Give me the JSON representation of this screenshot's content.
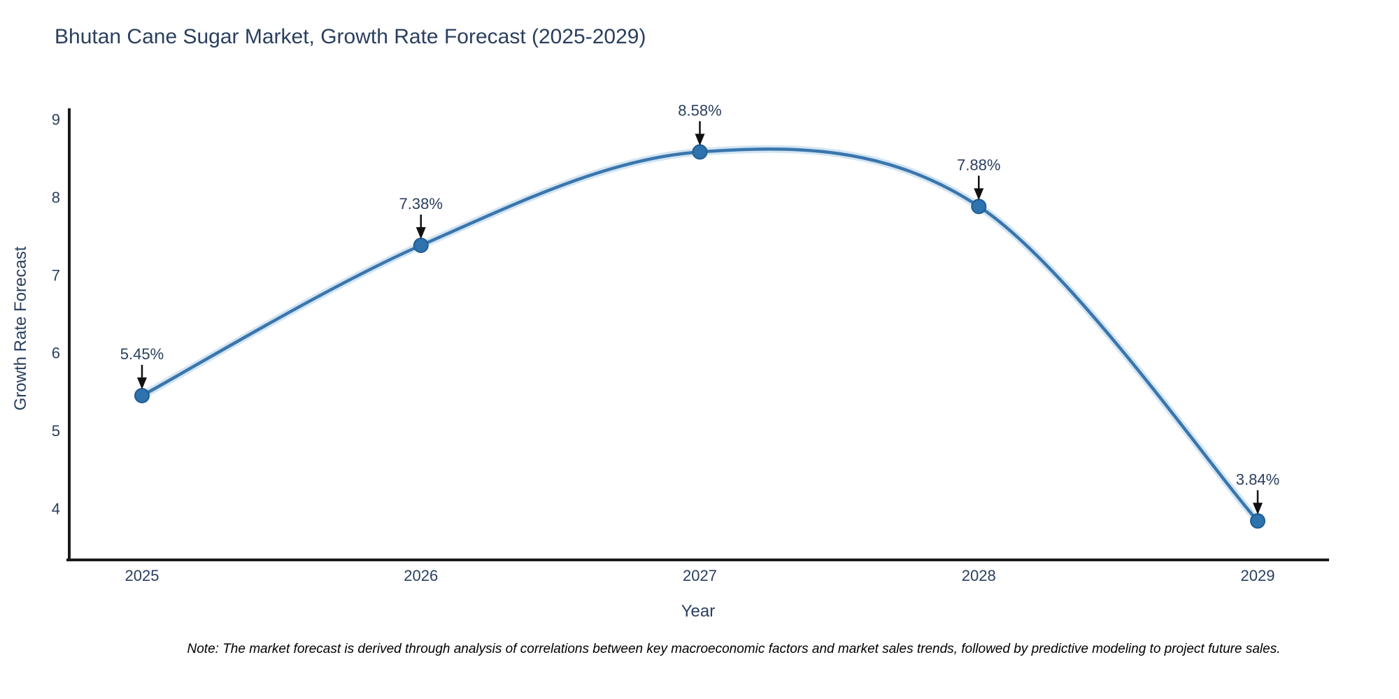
{
  "page": {
    "note": "Note: The market forecast is derived through analysis of correlations between key macroeconomic factors and market sales trends, followed by predictive modeling to project future sales."
  },
  "chart_data": {
    "type": "line",
    "title": "Bhutan Cane Sugar Market, Growth Rate Forecast (2025-2029)",
    "xlabel": "Year",
    "ylabel": "Growth Rate Forecast",
    "categories": [
      "2025",
      "2026",
      "2027",
      "2028",
      "2029"
    ],
    "x": [
      2025,
      2026,
      2027,
      2028,
      2029
    ],
    "series": [
      {
        "name": "Growth Rate Forecast",
        "values": [
          5.45,
          7.38,
          8.58,
          7.88,
          3.84
        ],
        "point_labels": [
          "5.45%",
          "7.38%",
          "8.58%",
          "7.88%",
          "3.84%"
        ]
      }
    ],
    "yticks": [
      4,
      5,
      6,
      7,
      8,
      9
    ],
    "ylim": [
      3.34,
      9.14
    ],
    "grid": false,
    "legend_position": "none",
    "line_style": "spline",
    "annotations": "arrow-down-to-point",
    "colors": {
      "line": "#3a76ad",
      "line_halo": "#bcd7ec",
      "marker_fill": "#2e72ae",
      "marker_edge": "#215d92",
      "axis_line": "#1a1a1a",
      "text": "#2a3f5f",
      "annotation_arrow": "#111111",
      "background": "#ffffff"
    }
  }
}
